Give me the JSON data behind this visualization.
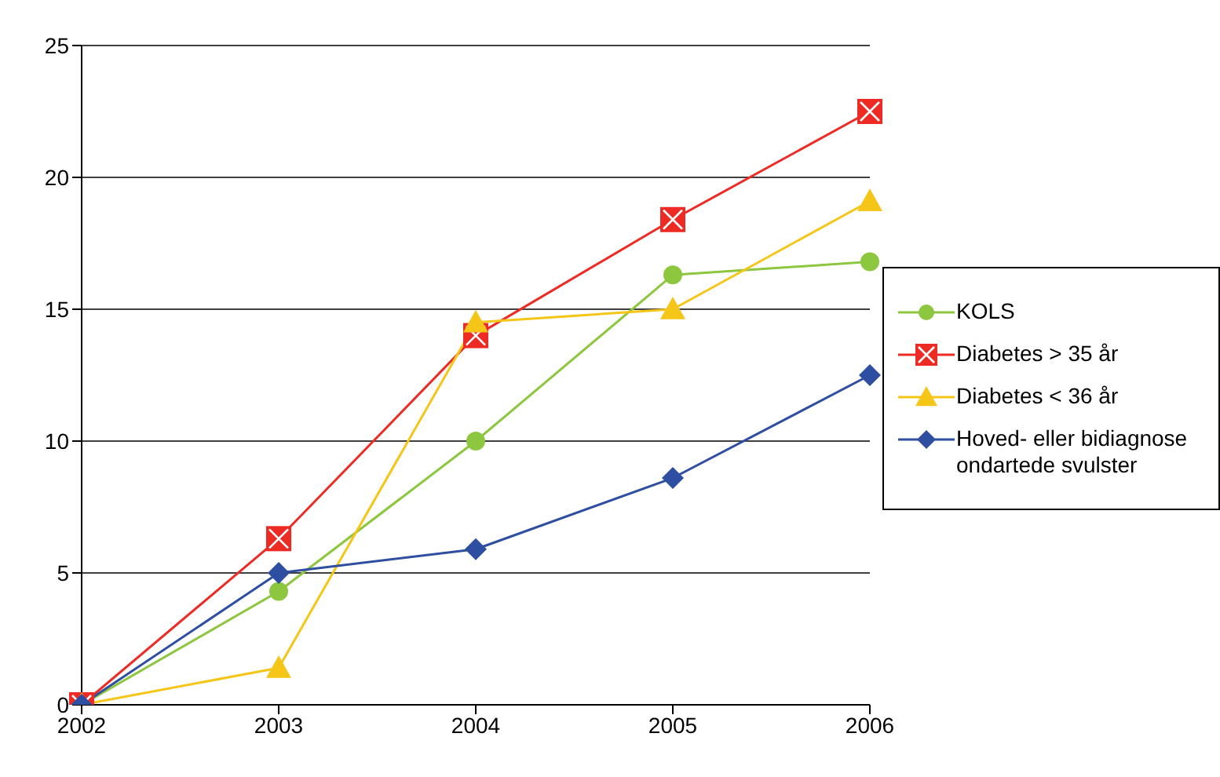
{
  "chart_data": {
    "type": "line",
    "categories": [
      "2002",
      "2003",
      "2004",
      "2005",
      "2006"
    ],
    "series": [
      {
        "name": "KOLS",
        "color": "#8dc63f",
        "marker": "circle",
        "values": [
          0,
          4.3,
          10,
          16.3,
          16.8
        ]
      },
      {
        "name": "Diabetes > 35 år",
        "color": "#ee2a24",
        "marker": "square",
        "values": [
          0,
          6.3,
          14,
          18.4,
          22.5
        ]
      },
      {
        "name": "Diabetes < 36 år",
        "color": "#f5c518",
        "marker": "triangle",
        "values": [
          0,
          1.4,
          14.5,
          15,
          19.1
        ]
      },
      {
        "name": "Hoved- eller bidiagnose ondartede svulster",
        "color": "#2e4ea1",
        "marker": "diamond",
        "values": [
          0,
          5,
          5.9,
          8.6,
          12.5
        ]
      }
    ],
    "ylim": [
      0,
      25
    ],
    "yticks": [
      0,
      5,
      10,
      15,
      20,
      25
    ],
    "grid": "y",
    "legend": "right"
  }
}
